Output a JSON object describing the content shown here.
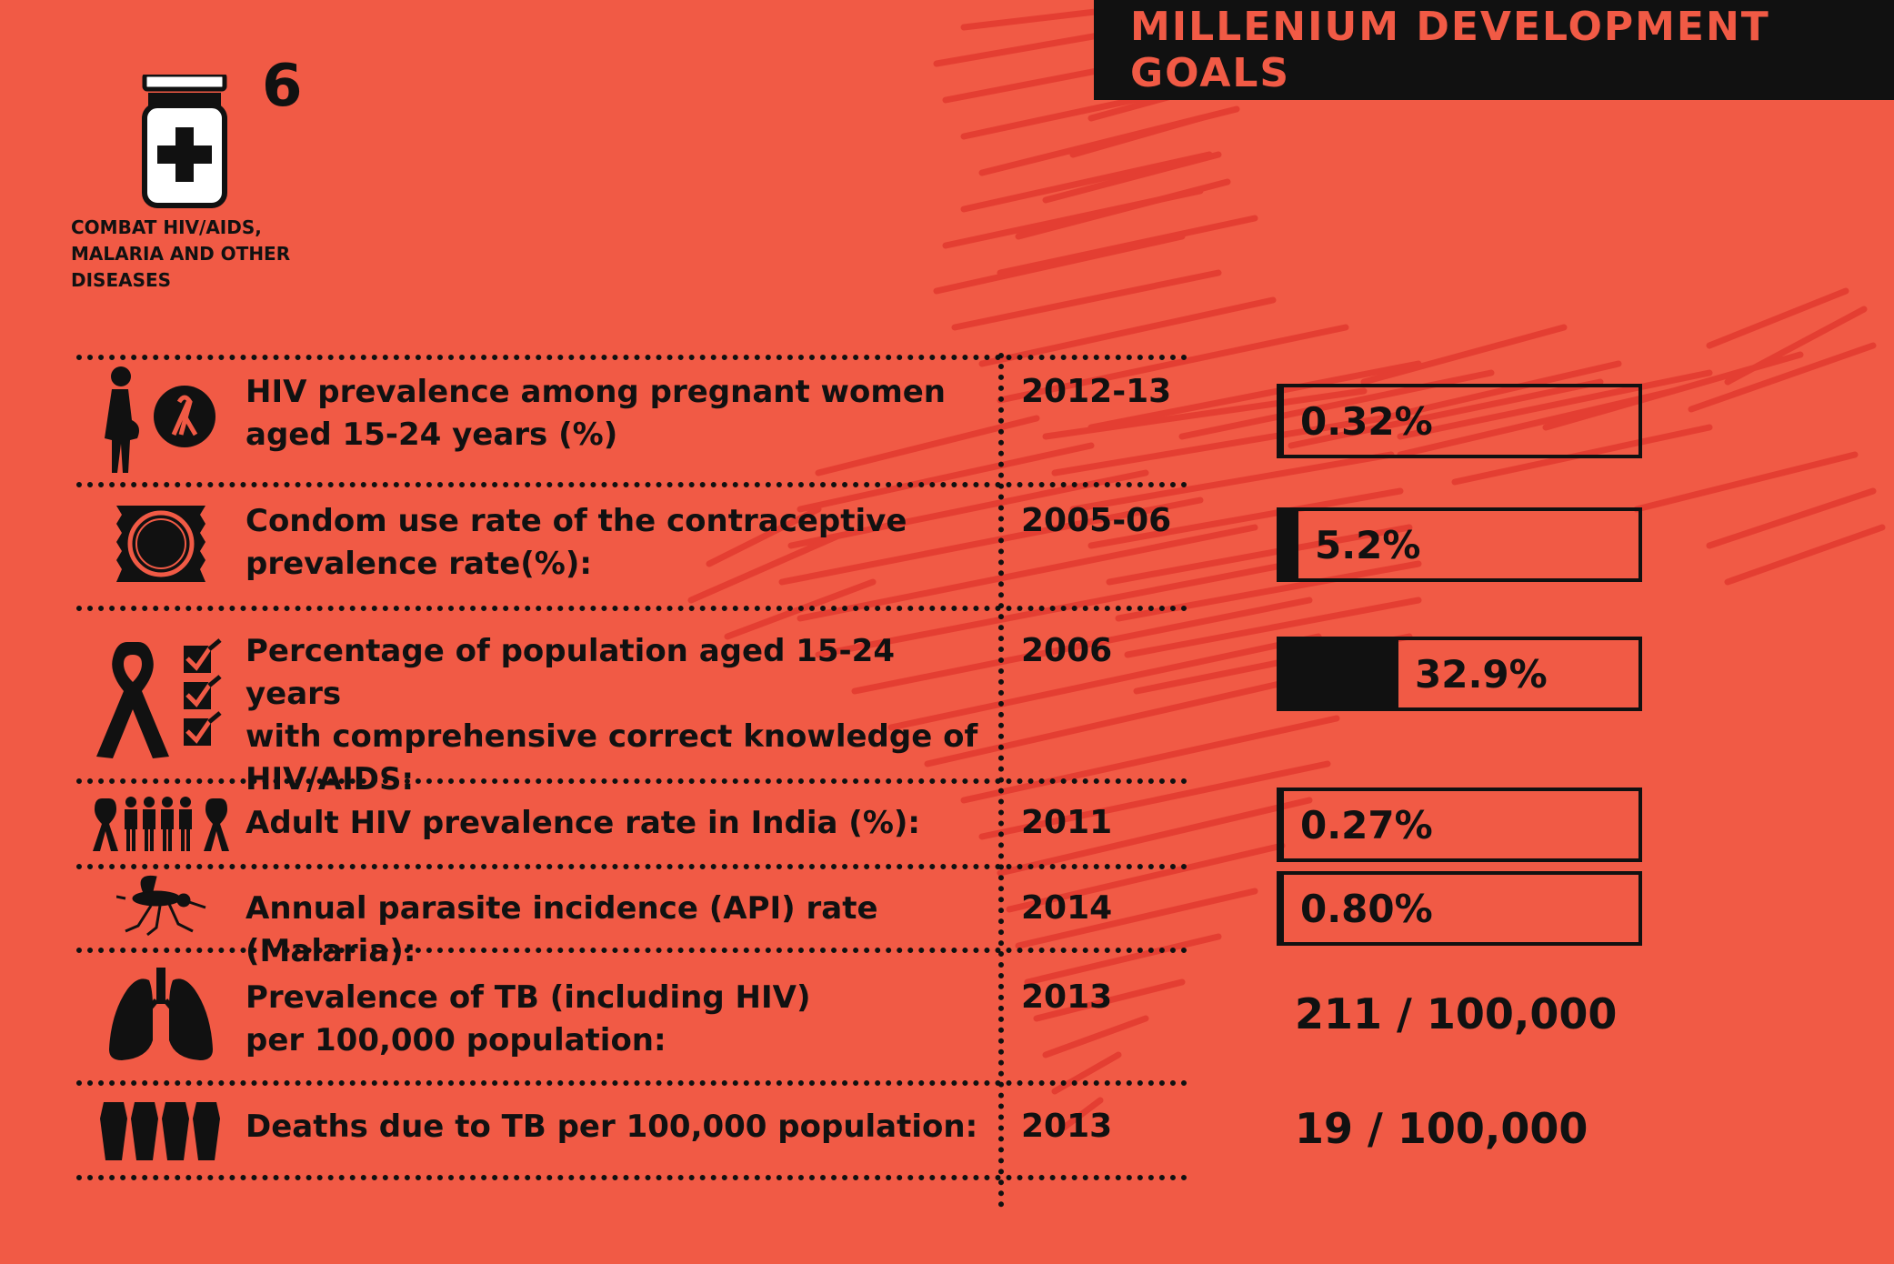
{
  "header": {
    "title": "MILLENIUM DEVELOPMENT GOALS"
  },
  "goal": {
    "number": "6",
    "caption_lines": [
      "COMBAT HIV/AIDS,",
      "MALARIA AND OTHER",
      "DISEASES"
    ],
    "icon": "medicine-bottle-icon"
  },
  "indicators": [
    {
      "icon": "pregnant-woman-ribbon-icon",
      "label_lines": [
        "HIV prevalence among pregnant women",
        "aged 15-24 years (%)"
      ],
      "year": "2012-13",
      "value": "0.32%",
      "fraction": 0.0032
    },
    {
      "icon": "condom-icon",
      "label_lines": [
        "Condom use rate of the contraceptive",
        "prevalence rate(%):"
      ],
      "year": "2005-06",
      "value": "5.2%",
      "fraction": 0.052
    },
    {
      "icon": "ribbon-checklist-icon",
      "label_lines": [
        "Percentage of population aged 15-24 years",
        "with comprehensive correct knowledge of",
        "HIV/AIDS:"
      ],
      "year": "2006",
      "value": "32.9%",
      "fraction": 0.329
    },
    {
      "icon": "people-ribbons-icon",
      "label_lines": [
        "Adult HIV prevalence rate in India (%):"
      ],
      "year": "2011",
      "value": "0.27%",
      "fraction": 0.0027
    },
    {
      "icon": "mosquito-icon",
      "label_lines": [
        "Annual parasite incidence (API) rate (Malaria):"
      ],
      "year": "2014",
      "value": "0.80%",
      "fraction": 0.008
    },
    {
      "icon": "lungs-icon",
      "label_lines": [
        "Prevalence of TB (including HIV)",
        "per 100,000 population:"
      ],
      "year": "2013",
      "value": "211 / 100,000"
    },
    {
      "icon": "coffins-icon",
      "label_lines": [
        "Deaths due to TB per 100,000 population:"
      ],
      "year": "2013",
      "value": "19 / 100,000"
    }
  ],
  "colors": {
    "background": "#f15a45",
    "scribble": "#e0392e",
    "ink": "#111111"
  }
}
